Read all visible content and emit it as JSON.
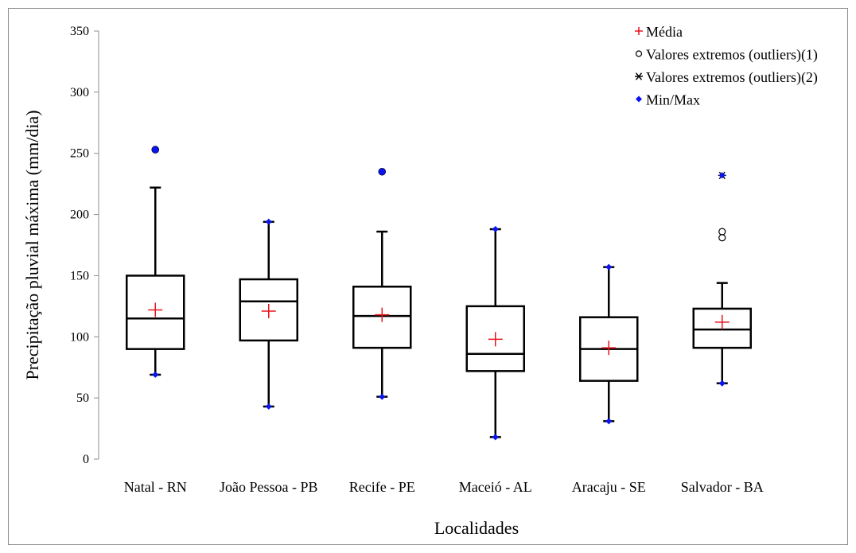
{
  "chart_data": {
    "type": "boxplot",
    "title": "",
    "xlabel": "Localidades",
    "ylabel": "Precipitação pluvial máxima (mm/dia)",
    "ylim": [
      0,
      350
    ],
    "yticks": [
      "0",
      "50",
      "100",
      "150",
      "200",
      "250",
      "300",
      "350"
    ],
    "categories": [
      "Natal - RN",
      "João Pessoa - PB",
      "Recife - PE",
      "Maceió - AL",
      "Aracaju - SE",
      "Salvador - BA"
    ],
    "boxes": [
      {
        "min": 69,
        "q1": 90,
        "median": 115,
        "q3": 150,
        "max": 222,
        "mean": 122,
        "outliers1": [],
        "outliers2": [],
        "minmax": [
          69,
          253
        ]
      },
      {
        "min": 43,
        "q1": 97,
        "median": 129,
        "q3": 147,
        "max": 194,
        "mean": 121,
        "outliers1": [],
        "outliers2": [],
        "minmax": [
          43,
          194
        ]
      },
      {
        "min": 51,
        "q1": 91,
        "median": 117,
        "q3": 141,
        "max": 186,
        "mean": 118,
        "outliers1": [],
        "outliers2": [],
        "minmax": [
          51,
          235
        ]
      },
      {
        "min": 18,
        "q1": 72,
        "median": 86,
        "q3": 125,
        "max": 188,
        "mean": 98,
        "outliers1": [],
        "outliers2": [],
        "minmax": [
          18,
          188
        ]
      },
      {
        "min": 31,
        "q1": 64,
        "median": 90,
        "q3": 116,
        "max": 157,
        "mean": 91,
        "outliers1": [],
        "outliers2": [],
        "minmax": [
          31,
          157
        ]
      },
      {
        "min": 62,
        "q1": 91,
        "median": 106,
        "q3": 123,
        "max": 144,
        "mean": 112,
        "outliers1": [
          181,
          186
        ],
        "outliers2": [
          232
        ],
        "minmax": [
          62,
          232
        ]
      }
    ],
    "legend": {
      "position": "top-right",
      "entries": [
        {
          "marker": "plus",
          "label": "Média"
        },
        {
          "marker": "circle",
          "label": "Valores extremos (outliers)(1)"
        },
        {
          "marker": "star",
          "label": "Valores extremos (outliers)(2)"
        },
        {
          "marker": "diamond",
          "label": "Min/Max"
        }
      ]
    },
    "colors": {
      "mean": "#e8141e",
      "minmax": "#0a14f0",
      "box": "#000000",
      "axis": "#8c8c8c"
    }
  }
}
